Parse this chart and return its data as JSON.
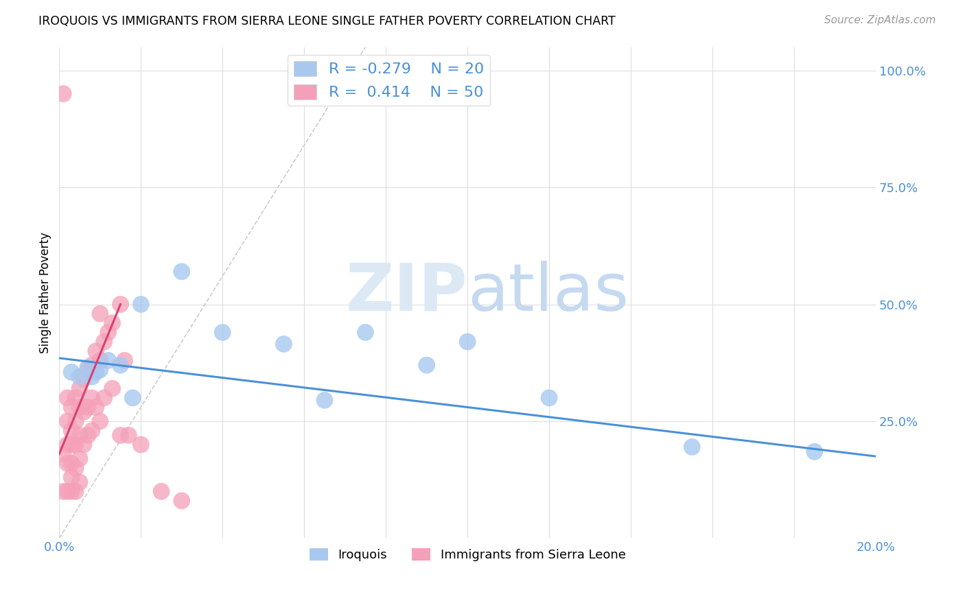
{
  "title": "IROQUOIS VS IMMIGRANTS FROM SIERRA LEONE SINGLE FATHER POVERTY CORRELATION CHART",
  "source": "Source: ZipAtlas.com",
  "ylabel_label": "Single Father Poverty",
  "xlim": [
    0.0,
    0.2
  ],
  "ylim": [
    0.0,
    1.05
  ],
  "iroquois_color": "#a8c8f0",
  "sierra_leone_color": "#f4a0b8",
  "line1_color": "#4a90d9",
  "line2_color": "#d94070",
  "legend_r1": "R = -0.279",
  "legend_n1": "N = 20",
  "legend_r2": "R =  0.414",
  "legend_n2": "N = 50",
  "iroquois_x": [
    0.003,
    0.005,
    0.007,
    0.008,
    0.009,
    0.01,
    0.012,
    0.015,
    0.018,
    0.02,
    0.03,
    0.04,
    0.055,
    0.065,
    0.075,
    0.09,
    0.1,
    0.12,
    0.155,
    0.185
  ],
  "iroquois_y": [
    0.355,
    0.345,
    0.365,
    0.345,
    0.355,
    0.36,
    0.38,
    0.37,
    0.3,
    0.5,
    0.57,
    0.44,
    0.415,
    0.295,
    0.44,
    0.37,
    0.42,
    0.3,
    0.195,
    0.185
  ],
  "sierra_leone_x": [
    0.001,
    0.001,
    0.001,
    0.002,
    0.002,
    0.002,
    0.002,
    0.002,
    0.003,
    0.003,
    0.003,
    0.003,
    0.003,
    0.003,
    0.004,
    0.004,
    0.004,
    0.004,
    0.004,
    0.005,
    0.005,
    0.005,
    0.005,
    0.005,
    0.006,
    0.006,
    0.006,
    0.007,
    0.007,
    0.007,
    0.008,
    0.008,
    0.008,
    0.009,
    0.009,
    0.01,
    0.01,
    0.01,
    0.011,
    0.011,
    0.012,
    0.013,
    0.013,
    0.015,
    0.015,
    0.016,
    0.017,
    0.02,
    0.025,
    0.03
  ],
  "sierra_leone_y": [
    0.95,
    0.18,
    0.1,
    0.3,
    0.25,
    0.2,
    0.16,
    0.1,
    0.28,
    0.23,
    0.2,
    0.16,
    0.13,
    0.1,
    0.3,
    0.25,
    0.2,
    0.15,
    0.1,
    0.32,
    0.28,
    0.22,
    0.17,
    0.12,
    0.34,
    0.27,
    0.2,
    0.36,
    0.28,
    0.22,
    0.37,
    0.3,
    0.23,
    0.4,
    0.28,
    0.48,
    0.38,
    0.25,
    0.42,
    0.3,
    0.44,
    0.46,
    0.32,
    0.5,
    0.22,
    0.38,
    0.22,
    0.2,
    0.1,
    0.08
  ],
  "diag_line_x": [
    0.0,
    0.075
  ],
  "diag_line_y": [
    0.0,
    1.05
  ]
}
